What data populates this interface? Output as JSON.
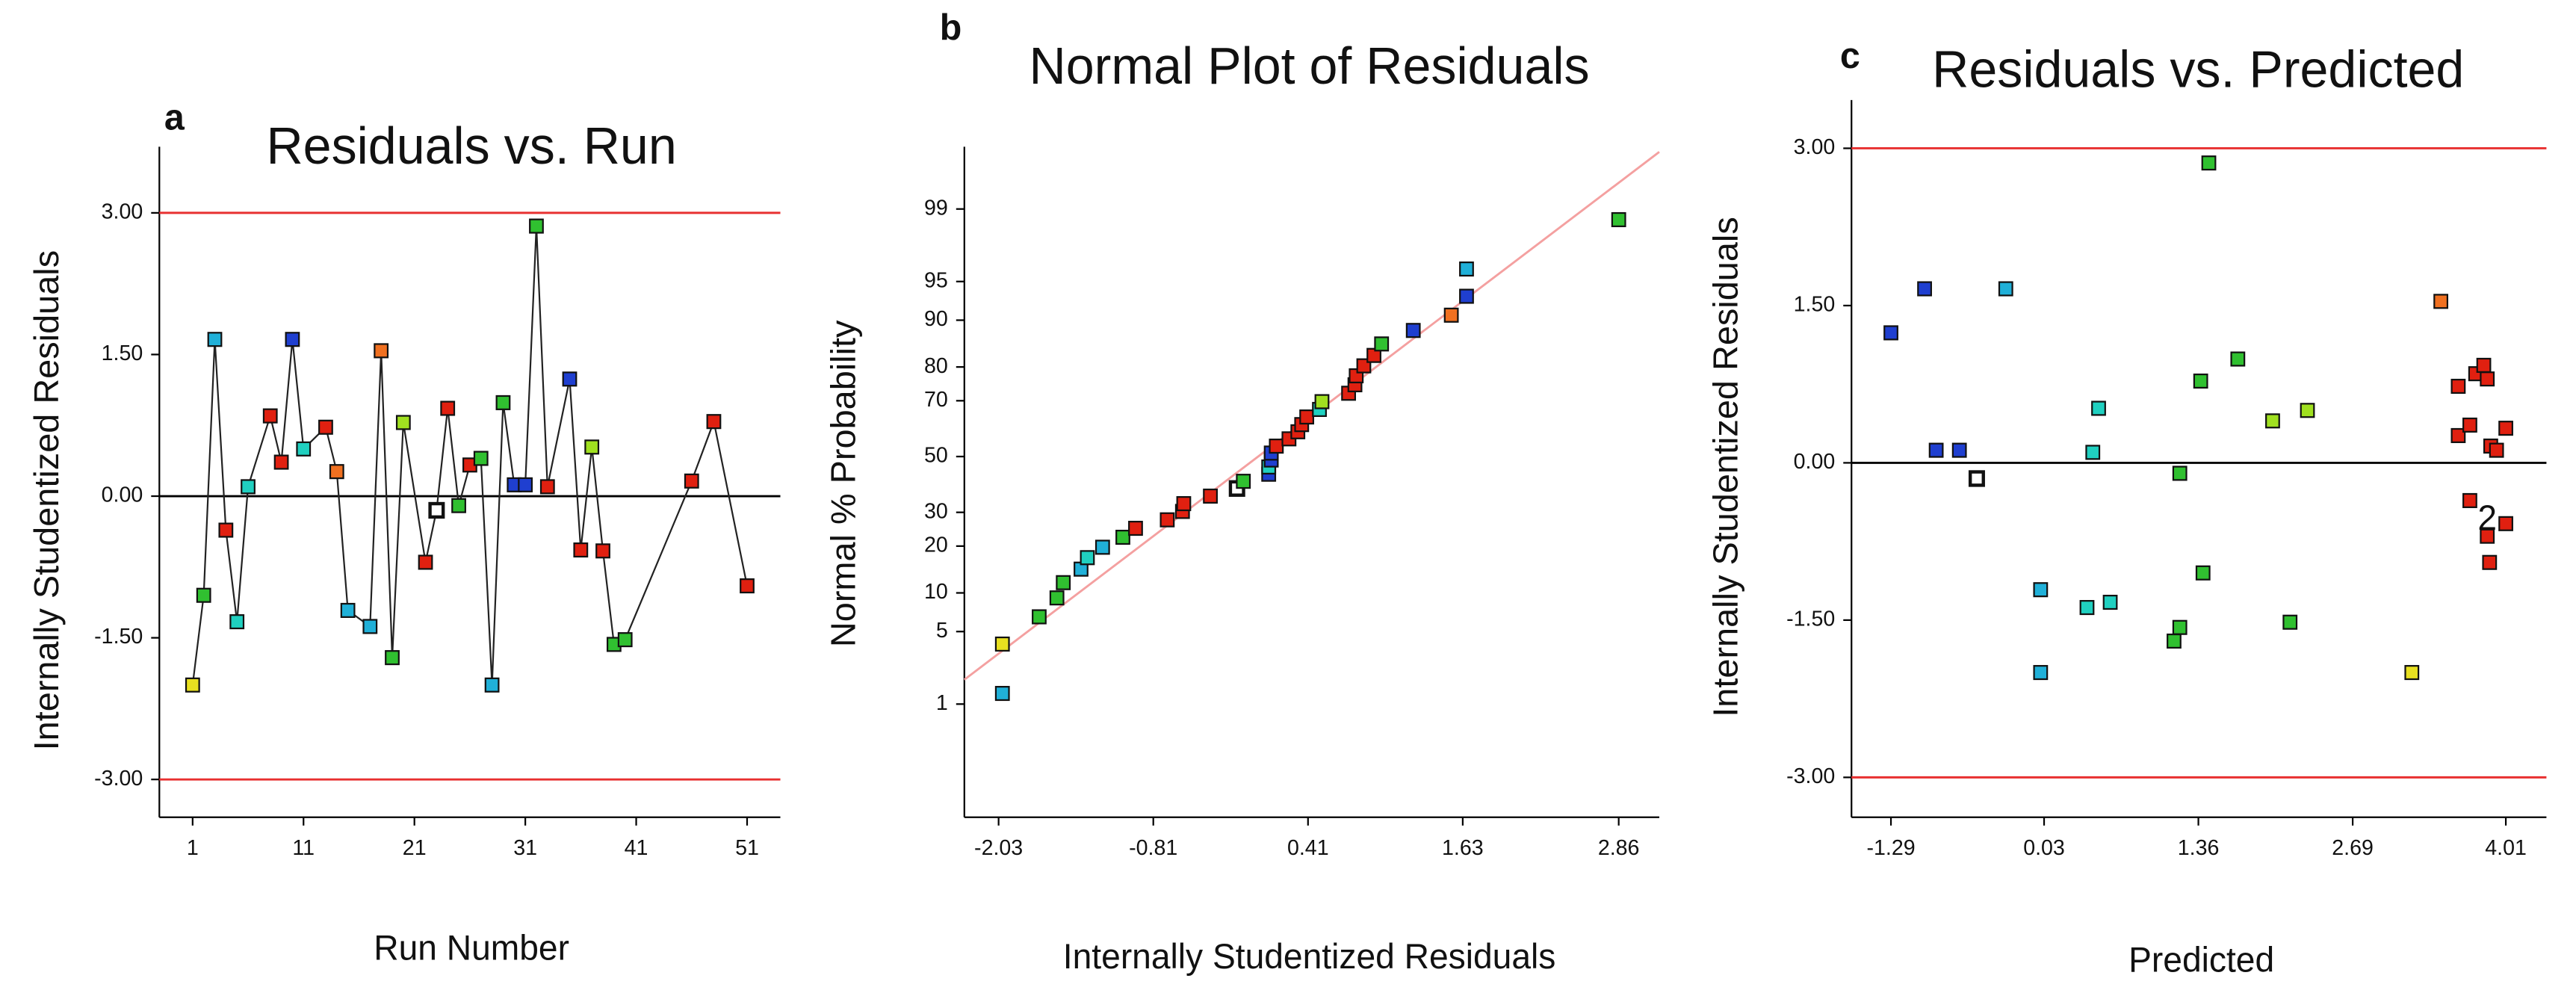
{
  "chart_data": [
    {
      "type": "scatter",
      "panel": "a",
      "title": "Residuals vs. Run",
      "xlabel": "Run Number",
      "ylabel": "Internally Studentized Residuals",
      "line": true,
      "line_color": "#222222",
      "xlim": [
        -2,
        54
      ],
      "ylim": [
        -3.4,
        3.7
      ],
      "xticks": [
        1,
        11,
        21,
        31,
        41,
        51
      ],
      "yticks": [
        {
          "value": -3,
          "label": "-3.00"
        },
        {
          "value": -1.5,
          "label": "-1.50"
        },
        {
          "value": 0,
          "label": "0.00"
        },
        {
          "value": 1.5,
          "label": "1.50"
        },
        {
          "value": 3,
          "label": "3.00"
        }
      ],
      "hlines": [
        {
          "value": 3,
          "color": "#e83030"
        },
        {
          "value": 0,
          "color": "#000000"
        },
        {
          "value": -3,
          "color": "#e83030"
        }
      ],
      "x": [
        1,
        2,
        3,
        4,
        5,
        6,
        8,
        9,
        10,
        11,
        13,
        14,
        15,
        17,
        18,
        19,
        20,
        22,
        23,
        24,
        25,
        26,
        27,
        28,
        29,
        30,
        31,
        32,
        33,
        35,
        36,
        37,
        38,
        39,
        40,
        46,
        48,
        51
      ],
      "values": [
        -2.0,
        -1.05,
        1.66,
        -0.36,
        -1.33,
        0.1,
        0.85,
        0.36,
        1.66,
        0.5,
        0.73,
        0.26,
        -1.21,
        -1.38,
        1.54,
        -1.71,
        0.78,
        -0.7,
        -0.15,
        0.93,
        -0.1,
        0.33,
        0.4,
        -2.0,
        0.99,
        0.12,
        0.12,
        2.86,
        0.1,
        1.24,
        -0.57,
        0.52,
        -0.58,
        -1.57,
        -1.52,
        0.16,
        0.79,
        -0.95
      ],
      "colors": [
        "#e8e020",
        "#30c030",
        "#20b0d8",
        "#e02010",
        "#20d0c0",
        "#20d0c0",
        "#e02010",
        "#e02010",
        "#1f3fd0",
        "#20d0c0",
        "#e02010",
        "#f07020",
        "#20b0d8",
        "#20b0d8",
        "#f07020",
        "#30c030",
        "#a0e020",
        "#e02010",
        "#ffffff",
        "#e02010",
        "#30c030",
        "#e02010",
        "#30c030",
        "#20b0d8",
        "#30c030",
        "#1f3fd0",
        "#1f3fd0",
        "#30c030",
        "#e02010",
        "#1f3fd0",
        "#e02010",
        "#a0e020",
        "#e02010",
        "#30c030",
        "#30c030",
        "#e02010",
        "#e02010",
        "#e02010"
      ]
    },
    {
      "type": "scatter",
      "panel": "b",
      "title": "Normal Plot of Residuals",
      "xlabel": "Internally Studentized Residuals",
      "ylabel": "Normal % Probability",
      "y_scale": "probit",
      "xlim": [
        -2.3,
        3.18
      ],
      "ylim": [
        0.035,
        99.82
      ],
      "xticks": [
        -2.03,
        -0.81,
        0.41,
        1.63,
        2.86
      ],
      "yticks": [
        1,
        5,
        10,
        20,
        30,
        50,
        70,
        80,
        90,
        95,
        99
      ],
      "fit_line": {
        "x": [
          -2.3,
          3.18
        ],
        "y": [
          1.8,
          99.79
        ],
        "color": "#f4a0a0"
      },
      "x": [
        -2.0,
        -2.0,
        -1.71,
        -1.57,
        -1.52,
        -1.38,
        -1.33,
        -1.21,
        -1.05,
        -0.95,
        -0.7,
        -0.58,
        -0.57,
        -0.36,
        -0.15,
        -0.1,
        0.1,
        0.1,
        0.12,
        0.12,
        0.16,
        0.26,
        0.33,
        0.36,
        0.4,
        0.5,
        0.52,
        0.73,
        0.78,
        0.79,
        0.85,
        0.93,
        0.99,
        1.24,
        1.54,
        1.66,
        1.66,
        2.86
      ],
      "values": [
        1.3,
        3.9,
        6.6,
        9.2,
        11.8,
        14.5,
        17.1,
        19.7,
        22.4,
        25.0,
        27.6,
        30.3,
        32.9,
        35.5,
        38.2,
        40.8,
        43.4,
        46.1,
        48.7,
        51.3,
        53.9,
        56.6,
        59.2,
        61.8,
        64.5,
        67.1,
        69.7,
        72.4,
        75.0,
        77.6,
        80.3,
        82.9,
        85.5,
        88.2,
        90.8,
        93.4,
        96.1,
        98.7
      ],
      "colors": [
        "#20b0d8",
        "#e8e020",
        "#30c030",
        "#30c030",
        "#30c030",
        "#20b0d8",
        "#20d0c0",
        "#20b0d8",
        "#30c030",
        "#e02010",
        "#e02010",
        "#e02010",
        "#e02010",
        "#e02010",
        "#ffffff",
        "#30c030",
        "#1f3fd0",
        "#20d0c0",
        "#1f3fd0",
        "#1f3fd0",
        "#e02010",
        "#e02010",
        "#e02010",
        "#e02010",
        "#e02010",
        "#20d0c0",
        "#a0e020",
        "#e02010",
        "#e02010",
        "#e02010",
        "#e02010",
        "#e02010",
        "#30c030",
        "#1f3fd0",
        "#f07020",
        "#1f3fd0",
        "#20b0d8",
        "#30c030"
      ]
    },
    {
      "type": "scatter",
      "panel": "c",
      "title": "Residuals vs. Predicted",
      "xlabel": "Predicted",
      "ylabel": "Internally Studentized Residuals",
      "xlim": [
        -1.63,
        4.36
      ],
      "ylim": [
        -3.38,
        3.46
      ],
      "xticks": [
        -1.29,
        0.03,
        1.36,
        2.69,
        4.01
      ],
      "yticks": [
        {
          "value": -3,
          "label": "-3.00"
        },
        {
          "value": -1.5,
          "label": "-1.50"
        },
        {
          "value": 0,
          "label": "0.00"
        },
        {
          "value": 1.5,
          "label": "1.50"
        },
        {
          "value": 3,
          "label": "3.00"
        }
      ],
      "hlines": [
        {
          "value": 3,
          "color": "#e83030"
        },
        {
          "value": 0,
          "color": "#000000"
        },
        {
          "value": -3,
          "color": "#e83030"
        }
      ],
      "annotations": [
        {
          "text": "2",
          "x": 3.85,
          "y": -0.55
        }
      ],
      "x": [
        -1.29,
        -1.0,
        -0.9,
        -0.7,
        -0.55,
        -0.3,
        0.0,
        0.0,
        0.4,
        0.45,
        0.5,
        0.6,
        1.15,
        1.2,
        1.2,
        1.38,
        1.4,
        1.45,
        1.7,
        2.0,
        2.15,
        2.3,
        3.2,
        3.45,
        3.6,
        3.6,
        3.7,
        3.7,
        3.75,
        3.82,
        3.85,
        3.88,
        3.93,
        3.85,
        3.87,
        4.01,
        4.01
      ],
      "values": [
        1.24,
        1.66,
        0.12,
        0.12,
        -0.15,
        1.66,
        -1.21,
        -2.0,
        -1.38,
        0.1,
        0.52,
        -1.33,
        -1.7,
        -0.1,
        -1.57,
        0.78,
        -1.05,
        2.86,
        0.99,
        0.4,
        -1.52,
        0.5,
        -2.0,
        1.54,
        0.73,
        0.26,
        0.36,
        -0.36,
        0.85,
        0.93,
        0.8,
        0.16,
        0.12,
        -0.7,
        -0.95,
        0.33,
        -0.58
      ],
      "colors": [
        "#1f3fd0",
        "#1f3fd0",
        "#1f3fd0",
        "#1f3fd0",
        "#ffffff",
        "#20b0d8",
        "#20b0d8",
        "#20b0d8",
        "#20d0c0",
        "#20d0c0",
        "#20d0c0",
        "#20d0c0",
        "#30c030",
        "#30c030",
        "#30c030",
        "#30c030",
        "#30c030",
        "#30c030",
        "#30c030",
        "#a0e020",
        "#30c030",
        "#a0e020",
        "#e8e020",
        "#f07020",
        "#e02010",
        "#e02010",
        "#e02010",
        "#e02010",
        "#e02010",
        "#e02010",
        "#e02010",
        "#e02010",
        "#e02010",
        "#e02010",
        "#e02010",
        "#e02010",
        "#e02010"
      ]
    }
  ]
}
